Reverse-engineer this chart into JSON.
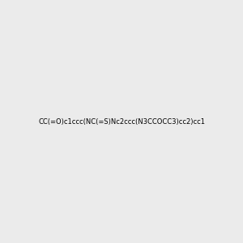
{
  "smiles": "CC(=O)c1ccc(NC(=S)Nc2ccc(N3CCOCC3)cc2)cc1",
  "image_size": 300,
  "background_color": "#ebebeb",
  "title": ""
}
